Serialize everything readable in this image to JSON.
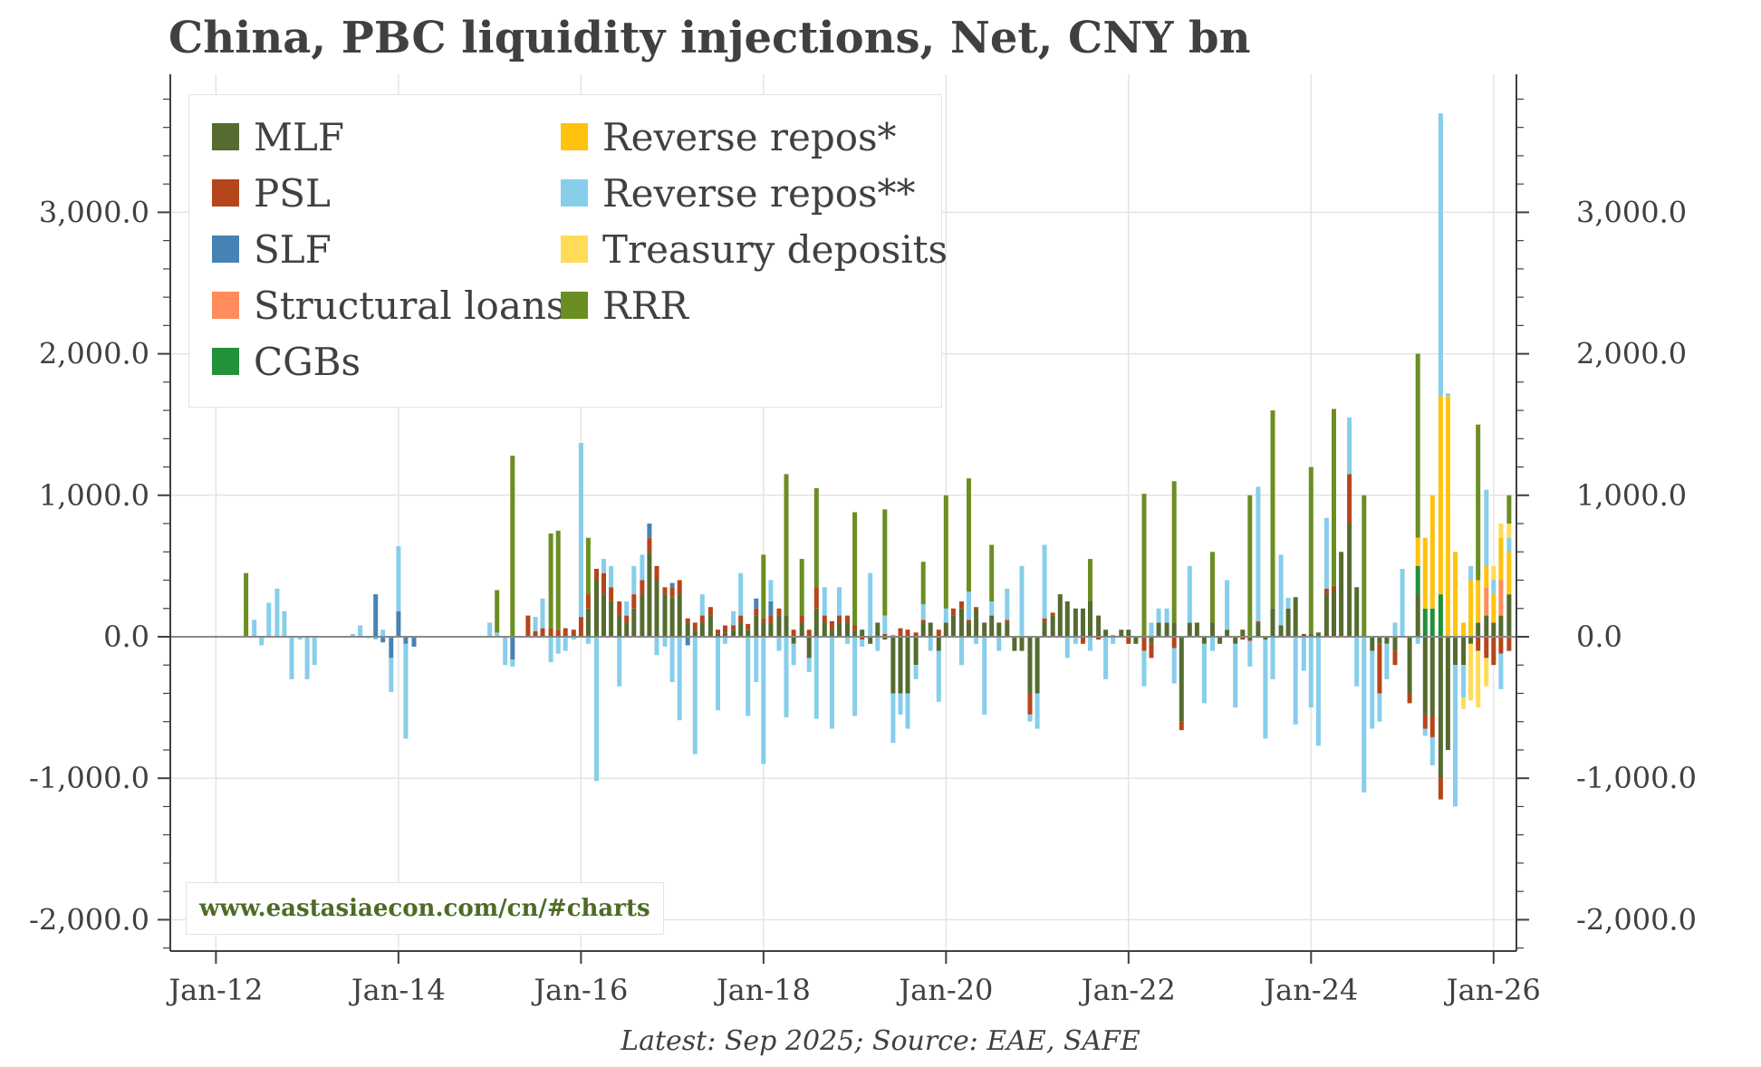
{
  "footnote": "Latest: Sep 2025; Source: EAE, SAFE",
  "source_url": "www.eastasiaecon.com/cn/#charts",
  "colors": {
    "MLF": "#556b2f",
    "PSL": "#b5451b",
    "SLF": "#4682b4",
    "Structural loans": "#ff8c5a",
    "CGBs": "#22913a",
    "Reverse repos*": "#ffc20e",
    "Reverse repos**": "#87ceeb",
    "Treasury deposits": "#ffdb58",
    "RRR": "#6b8e23"
  },
  "chart_data": {
    "type": "bar",
    "stacked": true,
    "title": "China, PBC liquidity injections, Net, CNY bn",
    "xlabel": "",
    "ylabel": "",
    "ylim": [
      -2200,
      3900
    ],
    "yticks": [
      -2000,
      -1000,
      0,
      1000,
      2000,
      3000
    ],
    "ytick_labels": [
      "-2,000.0",
      "-1,000.0",
      "0.0",
      "1,000.0",
      "2,000.0",
      "3,000.0"
    ],
    "xlim": [
      2011.5,
      2026.25
    ],
    "xticks": [
      2012,
      2014,
      2016,
      2018,
      2020,
      2022,
      2024,
      2026
    ],
    "xtick_labels": [
      "Jan-12",
      "Jan-14",
      "Jan-16",
      "Jan-18",
      "Jan-20",
      "Jan-22",
      "Jan-24",
      "Jan-26"
    ],
    "legend_position": "top-left",
    "legend": [
      "MLF",
      "PSL",
      "SLF",
      "Structural loans",
      "CGBs",
      "Reverse repos*",
      "Reverse repos**",
      "Treasury deposits",
      "RRR"
    ],
    "bars": [
      {
        "x": 2012.33,
        "RRR": 450
      },
      {
        "x": 2012.42,
        "Reverse repos**": 120
      },
      {
        "x": 2012.5,
        "Reverse repos**": -60
      },
      {
        "x": 2012.58,
        "Reverse repos**": 240
      },
      {
        "x": 2012.67,
        "Reverse repos**": 340
      },
      {
        "x": 2012.75,
        "Reverse repos**": 180
      },
      {
        "x": 2012.83,
        "Reverse repos**": -300
      },
      {
        "x": 2012.92,
        "Reverse repos**": -20
      },
      {
        "x": 2013.0,
        "Reverse repos**": -300
      },
      {
        "x": 2013.08,
        "Reverse repos**": -200
      },
      {
        "x": 2013.5,
        "Reverse repos**": 20
      },
      {
        "x": 2013.58,
        "Reverse repos**": 80
      },
      {
        "x": 2013.67,
        "Reverse repos**": -10
      },
      {
        "x": 2013.75,
        "SLF": 300,
        "Reverse repos**": -20
      },
      {
        "x": 2013.83,
        "SLF": -40,
        "Reverse repos**": 50
      },
      {
        "x": 2013.92,
        "Reverse repos**": -240,
        "SLF": -150
      },
      {
        "x": 2014.0,
        "SLF": 180,
        "Reverse repos**": 460
      },
      {
        "x": 2014.08,
        "SLF": -50,
        "Reverse repos**": -670
      },
      {
        "x": 2014.17,
        "SLF": -70
      },
      {
        "x": 2015.0,
        "Reverse repos**": 100
      },
      {
        "x": 2015.08,
        "RRR": 300,
        "Reverse repos**": 30
      },
      {
        "x": 2015.17,
        "Reverse repos**": -200
      },
      {
        "x": 2015.25,
        "RRR": 1280,
        "SLF": -160,
        "Reverse repos**": -50
      },
      {
        "x": 2015.42,
        "PSL": 150
      },
      {
        "x": 2015.5,
        "PSL": 40,
        "Reverse repos**": 100
      },
      {
        "x": 2015.58,
        "PSL": 60,
        "Reverse repos**": 210
      },
      {
        "x": 2015.67,
        "RRR": 670,
        "PSL": 60,
        "Reverse repos**": -180
      },
      {
        "x": 2015.75,
        "RRR": 700,
        "PSL": 50,
        "Reverse repos**": -120
      },
      {
        "x": 2015.83,
        "PSL": 60,
        "Reverse repos**": -100
      },
      {
        "x": 2015.92,
        "PSL": 50,
        "Reverse repos**": -20
      },
      {
        "x": 2016.0,
        "PSL": 140,
        "Reverse repos**": 1230
      },
      {
        "x": 2016.08,
        "RRR": 400,
        "MLF": 200,
        "PSL": 100,
        "Reverse repos**": -50
      },
      {
        "x": 2016.17,
        "MLF": 400,
        "PSL": 80,
        "Reverse repos**": -1020
      },
      {
        "x": 2016.25,
        "MLF": 300,
        "PSL": 150,
        "Reverse repos**": 100
      },
      {
        "x": 2016.33,
        "MLF": 250,
        "PSL": 100,
        "Reverse repos**": 150
      },
      {
        "x": 2016.42,
        "MLF": 150,
        "PSL": 100,
        "Reverse repos**": -350
      },
      {
        "x": 2016.5,
        "MLF": 100,
        "PSL": 50,
        "Reverse repos**": 100
      },
      {
        "x": 2016.58,
        "MLF": 200,
        "PSL": 100,
        "Reverse repos**": 200
      },
      {
        "x": 2016.67,
        "MLF": 300,
        "PSL": 100,
        "Reverse repos**": 180
      },
      {
        "x": 2016.75,
        "MLF": 600,
        "PSL": 100,
        "SLF": 100
      },
      {
        "x": 2016.83,
        "MLF": 400,
        "PSL": 100,
        "Reverse repos**": -130
      },
      {
        "x": 2016.92,
        "MLF": 300,
        "PSL": 50,
        "Reverse repos**": -70
      },
      {
        "x": 2017.0,
        "MLF": 280,
        "PSL": 70,
        "SLF": 30,
        "Reverse repos**": -320
      },
      {
        "x": 2017.08,
        "MLF": 300,
        "PSL": 100,
        "Reverse repos**": -590
      },
      {
        "x": 2017.17,
        "MLF": 100,
        "PSL": 30,
        "SLF": -60
      },
      {
        "x": 2017.25,
        "MLF": 50,
        "PSL": 50,
        "Reverse repos**": -830
      },
      {
        "x": 2017.33,
        "MLF": 100,
        "PSL": 50,
        "Reverse repos**": 150
      },
      {
        "x": 2017.42,
        "MLF": 150,
        "PSL": 60
      },
      {
        "x": 2017.5,
        "MLF": 20,
        "PSL": 30,
        "Reverse repos**": -520
      },
      {
        "x": 2017.58,
        "MLF": 30,
        "PSL": 50,
        "Reverse repos**": -50
      },
      {
        "x": 2017.67,
        "MLF": 50,
        "PSL": 30,
        "Reverse repos**": 100
      },
      {
        "x": 2017.75,
        "MLF": 100,
        "PSL": 50,
        "Reverse repos**": 300
      },
      {
        "x": 2017.83,
        "MLF": 50,
        "PSL": 40,
        "Reverse repos**": -560
      },
      {
        "x": 2017.92,
        "MLF": 150,
        "PSL": 50,
        "SLF": 70,
        "Reverse repos**": -320
      },
      {
        "x": 2018.0,
        "RRR": 450,
        "MLF": 100,
        "PSL": 30,
        "Reverse repos**": -900
      },
      {
        "x": 2018.08,
        "MLF": 100,
        "PSL": 50,
        "SLF": 100,
        "Reverse repos**": 150
      },
      {
        "x": 2018.17,
        "MLF": 150,
        "PSL": 50,
        "Reverse repos**": -100
      },
      {
        "x": 2018.25,
        "RRR": 1000,
        "MLF": 150,
        "Reverse repos**": -570
      },
      {
        "x": 2018.33,
        "MLF": -50,
        "PSL": 50,
        "Reverse repos**": -150
      },
      {
        "x": 2018.42,
        "RRR": 400,
        "MLF": 100,
        "PSL": 50
      },
      {
        "x": 2018.5,
        "MLF": -150,
        "PSL": 50,
        "Reverse repos**": -100
      },
      {
        "x": 2018.58,
        "RRR": 700,
        "MLF": 200,
        "PSL": 150,
        "Reverse repos**": -580
      },
      {
        "x": 2018.67,
        "MLF": 100,
        "PSL": 50,
        "Reverse repos**": 200
      },
      {
        "x": 2018.75,
        "MLF": 50,
        "PSL": 60,
        "Reverse repos**": -650
      },
      {
        "x": 2018.83,
        "MLF": 100,
        "PSL": 50,
        "Reverse repos**": 200
      },
      {
        "x": 2018.92,
        "MLF": 100,
        "PSL": 50,
        "Reverse repos**": -50
      },
      {
        "x": 2019.0,
        "RRR": 800,
        "MLF": 50,
        "PSL": 30,
        "Reverse repos**": -560
      },
      {
        "x": 2019.08,
        "MLF": 50,
        "PSL": -20,
        "Reverse repos**": -50
      },
      {
        "x": 2019.17,
        "MLF": -50,
        "Reverse repos**": 450
      },
      {
        "x": 2019.25,
        "MLF": 100,
        "Reverse repos**": -100
      },
      {
        "x": 2019.33,
        "RRR": 750,
        "MLF": -20,
        "PSL": 20,
        "Reverse repos**": 130
      },
      {
        "x": 2019.42,
        "MLF": -400,
        "PSL": 10,
        "Reverse repos**": -350
      },
      {
        "x": 2019.5,
        "MLF": -400,
        "PSL": 60,
        "Reverse repos**": -150
      },
      {
        "x": 2019.58,
        "MLF": -400,
        "PSL": 50,
        "Reverse repos**": -250
      },
      {
        "x": 2019.67,
        "MLF": -200,
        "PSL": 30,
        "Reverse repos**": -100
      },
      {
        "x": 2019.75,
        "RRR": 300,
        "MLF": 100,
        "PSL": 20,
        "Reverse repos**": 110
      },
      {
        "x": 2019.83,
        "MLF": 100,
        "Reverse repos**": -100
      },
      {
        "x": 2019.92,
        "MLF": -100,
        "PSL": 50,
        "Reverse repos**": -360
      },
      {
        "x": 2020.0,
        "RRR": 800,
        "MLF": 100,
        "Reverse repos**": 100
      },
      {
        "x": 2020.08,
        "MLF": 150,
        "PSL": 50
      },
      {
        "x": 2020.17,
        "MLF": 200,
        "PSL": 50,
        "Reverse repos**": -200
      },
      {
        "x": 2020.25,
        "RRR": 800,
        "MLF": 100,
        "PSL": 20,
        "Reverse repos**": 200
      },
      {
        "x": 2020.33,
        "MLF": 200,
        "PSL": 10,
        "Reverse repos**": -50
      },
      {
        "x": 2020.42,
        "MLF": 100,
        "Reverse repos**": -550
      },
      {
        "x": 2020.5,
        "RRR": 400,
        "MLF": 150,
        "Reverse repos**": 100
      },
      {
        "x": 2020.58,
        "MLF": 100,
        "Reverse repos**": -100
      },
      {
        "x": 2020.67,
        "MLF": 100,
        "PSL": 20,
        "Reverse repos**": 220
      },
      {
        "x": 2020.75,
        "MLF": -100
      },
      {
        "x": 2020.83,
        "MLF": -100,
        "Reverse repos**": 500
      },
      {
        "x": 2020.92,
        "MLF": -400,
        "PSL": -150,
        "Reverse repos**": -50
      },
      {
        "x": 2021.0,
        "MLF": -400,
        "Reverse repos**": -250
      },
      {
        "x": 2021.08,
        "MLF": 100,
        "PSL": 30,
        "Reverse repos**": 520
      },
      {
        "x": 2021.17,
        "MLF": 150,
        "PSL": 20
      },
      {
        "x": 2021.25,
        "MLF": 300
      },
      {
        "x": 2021.33,
        "MLF": 250,
        "Reverse repos**": -150
      },
      {
        "x": 2021.42,
        "MLF": 200,
        "Reverse repos**": -50
      },
      {
        "x": 2021.5,
        "MLF": 200,
        "PSL": -50
      },
      {
        "x": 2021.58,
        "MLF": 250,
        "RRR": 300,
        "Reverse repos**": -100
      },
      {
        "x": 2021.67,
        "MLF": 150,
        "PSL": -20
      },
      {
        "x": 2021.75,
        "MLF": 50,
        "Reverse repos**": -300
      },
      {
        "x": 2021.83,
        "MLF": 10,
        "Reverse repos**": -50
      },
      {
        "x": 2021.92,
        "MLF": 50
      },
      {
        "x": 2022.0,
        "MLF": 50,
        "PSL": -50
      },
      {
        "x": 2022.08,
        "MLF": -50
      },
      {
        "x": 2022.17,
        "RRR": 1000,
        "MLF": 10,
        "PSL": -100,
        "Reverse repos**": -250
      },
      {
        "x": 2022.25,
        "MLF": -50,
        "PSL": -100,
        "Reverse repos**": 100
      },
      {
        "x": 2022.33,
        "MLF": 100,
        "Reverse repos**": 100
      },
      {
        "x": 2022.42,
        "MLF": 100,
        "Reverse repos**": 100
      },
      {
        "x": 2022.5,
        "RRR": 1000,
        "MLF": 100,
        "PSL": -80,
        "Reverse repos**": -250
      },
      {
        "x": 2022.58,
        "MLF": -600,
        "PSL": -60
      },
      {
        "x": 2022.67,
        "MLF": 100,
        "Reverse repos**": 400
      },
      {
        "x": 2022.75,
        "MLF": 100
      },
      {
        "x": 2022.83,
        "MLF": -50,
        "Reverse repos**": -420
      },
      {
        "x": 2022.92,
        "MLF": 100,
        "RRR": 500,
        "Reverse repos**": -100
      },
      {
        "x": 2023.0,
        "MLF": -50
      },
      {
        "x": 2023.08,
        "MLF": 50,
        "Reverse repos**": 350
      },
      {
        "x": 2023.17,
        "MLF": -50,
        "Reverse repos**": -450
      },
      {
        "x": 2023.25,
        "MLF": 50,
        "PSL": -20
      },
      {
        "x": 2023.33,
        "RRR": 1000,
        "MLF": -20,
        "PSL": -10,
        "Reverse repos**": -180
      },
      {
        "x": 2023.42,
        "MLF": 100,
        "PSL": 10,
        "Reverse repos**": 950
      },
      {
        "x": 2023.5,
        "MLF": -20,
        "Reverse repos**": -700
      },
      {
        "x": 2023.58,
        "RRR": 1400,
        "MLF": 200,
        "Reverse repos**": -300
      },
      {
        "x": 2023.67,
        "MLF": 80,
        "Reverse repos**": 500
      },
      {
        "x": 2023.75,
        "MLF": 200,
        "Reverse repos**": 75
      },
      {
        "x": 2023.83,
        "MLF": 280,
        "Reverse repos**": -620
      },
      {
        "x": 2023.92,
        "MLF": 20,
        "Reverse repos**": -240
      },
      {
        "x": 2024.0,
        "MLF": 20,
        "RRR": 1180,
        "Reverse repos**": -500
      },
      {
        "x": 2024.08,
        "MLF": 30,
        "Reverse repos**": -770
      },
      {
        "x": 2024.17,
        "MLF": 300,
        "PSL": 40,
        "Reverse repos**": 500
      },
      {
        "x": 2024.25,
        "MLF": 330,
        "PSL": 30,
        "RRR": 1250
      },
      {
        "x": 2024.33,
        "MLF": 600
      },
      {
        "x": 2024.42,
        "MLF": 800,
        "PSL": 350,
        "Reverse repos**": 400
      },
      {
        "x": 2024.5,
        "MLF": 350,
        "Reverse repos**": -350
      },
      {
        "x": 2024.58,
        "RRR": 1000,
        "Reverse repos**": -1100
      },
      {
        "x": 2024.67,
        "MLF": -100,
        "Reverse repos**": -550
      },
      {
        "x": 2024.75,
        "MLF": -50,
        "PSL": -350,
        "Reverse repos**": -200
      },
      {
        "x": 2024.83,
        "MLF": -50,
        "Reverse repos**": -250
      },
      {
        "x": 2024.92,
        "MLF": -100,
        "PSL": -100,
        "Reverse repos**": 100
      },
      {
        "x": 2025.0,
        "Reverse repos**": 480
      },
      {
        "x": 2025.08,
        "MLF": -400,
        "PSL": -70
      },
      {
        "x": 2025.17,
        "CGBs": 200,
        "MLF": 300,
        "RRR": 1300,
        "Reverse repos*": 200,
        "Reverse repos**": -50
      },
      {
        "x": 2025.25,
        "CGBs": 200,
        "Reverse repos*": 500,
        "MLF": -550,
        "PSL": -100,
        "Reverse repos**": -50
      },
      {
        "x": 2025.33,
        "CGBs": 200,
        "Reverse repos*": 800,
        "MLF": -560,
        "PSL": -150,
        "Reverse repos**": -200
      },
      {
        "x": 2025.42,
        "CGBs": 300,
        "Reverse repos*": 1400,
        "Reverse repos**": 2000,
        "MLF": -1000,
        "PSL": -150
      },
      {
        "x": 2025.5,
        "Reverse repos*": 1700,
        "MLF": -800,
        "Reverse repos**": 20
      },
      {
        "x": 2025.58,
        "Reverse repos*": 600,
        "MLF": -200,
        "Reverse repos**": -1000
      },
      {
        "x": 2025.67,
        "Reverse repos*": 100,
        "Treasury deposits": -80,
        "MLF": -200,
        "Reverse repos**": -230
      },
      {
        "x": 2025.75,
        "Reverse repos*": 400,
        "Reverse repos**": 100,
        "Treasury deposits": -400,
        "MLF": -50
      },
      {
        "x": 2025.83,
        "MLF": 100,
        "Reverse repos*": 300,
        "RRR": 1100,
        "Treasury deposits": -400,
        "PSL": -100
      },
      {
        "x": 2025.92,
        "MLF": 150,
        "Structural loans": 200,
        "Reverse repos*": 150,
        "Reverse repos**": 540,
        "Treasury deposits": -200,
        "PSL": -150
      },
      {
        "x": 2026.0,
        "MLF": 100,
        "Reverse repos*": 200,
        "Treasury deposits": 100,
        "Reverse repos**": 100,
        "PSL": -200
      },
      {
        "x": 2026.08,
        "MLF": 150,
        "Structural loans": 250,
        "Reverse repos*": 300,
        "Treasury deposits": 100,
        "Reverse repos**": -250,
        "PSL": -120
      },
      {
        "x": 2026.17,
        "MLF": 300,
        "Reverse repos*": 300,
        "Treasury deposits": 100,
        "Reverse repos**": 100,
        "PSL": -100,
        "RRR": 200
      }
    ]
  }
}
